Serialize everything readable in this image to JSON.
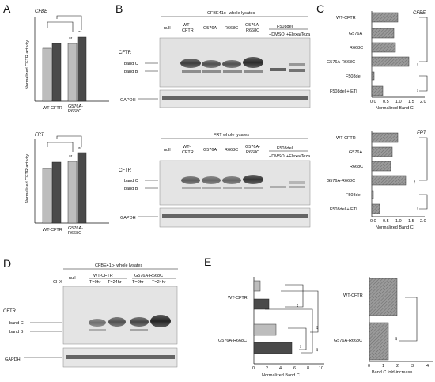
{
  "panels": {
    "A": {
      "letter": "A",
      "charts": [
        {
          "label": "CFBE",
          "ylabel": "Normalized CFTR activity",
          "xgroups": [
            "WT-CFTR",
            "G576A-R668C"
          ],
          "sig": [
            "**",
            "**"
          ]
        },
        {
          "label": "FRT",
          "ylabel": "Normalized CFTR activity",
          "xgroups": [
            "WT-CFTR",
            "G576A-R668C"
          ],
          "sig": [
            "**",
            "**"
          ]
        }
      ]
    },
    "B": {
      "letter": "B",
      "blots": [
        {
          "title": "CFBE41o- whole lysates",
          "lanes": [
            "null",
            "WT-CFTR",
            "G576A",
            "R668C",
            "G576A-R668C",
            "F508del"
          ],
          "sublanes": [
            "+DMSO",
            "+Elexa/Teza"
          ],
          "protein": "CFTR",
          "bandC": "band C",
          "bandB": "band B",
          "control": "GAPDH"
        },
        {
          "title": "FRT whole lysates",
          "lanes": [
            "null",
            "WT-CFTR",
            "G576A",
            "R668C",
            "G576A-R668C",
            "F508del"
          ],
          "sublanes": [
            "+DMSO",
            "+Elexa/Teza"
          ],
          "protein": "CFTR",
          "bandC": "band C",
          "bandB": "band B",
          "control": "GAPDH"
        }
      ]
    },
    "C": {
      "letter": "C",
      "charts": [
        {
          "label": "CFBE",
          "xlabel": "Normalized Band C",
          "ticks": [
            "0.0",
            "0.5",
            "1.0",
            "1.5",
            "2.0"
          ],
          "sig": [
            "**",
            "**"
          ]
        },
        {
          "label": "FRT",
          "xlabel": "Normalized Band C",
          "ticks": [
            "0.0",
            "0.5",
            "1.0",
            "1.5",
            "2.0"
          ],
          "sig": [
            "**",
            "**"
          ]
        }
      ]
    },
    "D": {
      "letter": "D",
      "title": "CFBE41o- whole lysates",
      "chx": "CHX",
      "lanes": [
        "null",
        "WT-CFTR",
        "G576A-R668C"
      ],
      "times": [
        "T=0hr",
        "T=24hr",
        "T=0hr",
        "T=24hr"
      ],
      "protein": "CFTR",
      "bandC": "band C",
      "bandB": "band B",
      "control": "GAPDH"
    },
    "E": {
      "letter": "E",
      "left": {
        "xlabel": "Normalized Band C",
        "ticks": [
          "0",
          "2",
          "4",
          "6",
          "8",
          "10"
        ],
        "groups": [
          "WT-CFTR",
          "G576A-R668C"
        ],
        "sig": [
          "**",
          "**",
          "**",
          "**"
        ]
      },
      "right": {
        "xlabel": "Band C fold-increase",
        "ticks": [
          "0",
          "1",
          "2",
          "3",
          "4"
        ],
        "groups": [
          "WT-CFTR",
          "G576A-R668C"
        ],
        "sig": [
          "**"
        ]
      }
    }
  },
  "chart_data": [
    {
      "type": "bar",
      "panel": "A-CFBE",
      "title": "CFBE",
      "ylabel": "Normalized CFTR activity",
      "categories": [
        "WT-CFTR",
        "G576A-R668C"
      ],
      "series": [
        {
          "color": "#bdbdbd",
          "values": [
            1.0,
            1.07
          ]
        },
        {
          "color": "#4a4a4a",
          "values": [
            1.1,
            1.22
          ]
        }
      ]
    },
    {
      "type": "bar",
      "panel": "A-FRT",
      "title": "FRT",
      "ylabel": "Normalized CFTR activity",
      "categories": [
        "WT-CFTR",
        "G576A-R668C"
      ],
      "series": [
        {
          "color": "#bdbdbd",
          "values": [
            1.0,
            1.12
          ]
        },
        {
          "color": "#4a4a4a",
          "values": [
            1.13,
            1.3
          ]
        }
      ]
    },
    {
      "type": "bar",
      "orientation": "horizontal",
      "panel": "C-CFBE",
      "title": "CFBE",
      "xlabel": "Normalized Band C",
      "xlim": [
        0,
        2.0
      ],
      "categories": [
        "WT-CFTR",
        "G576A",
        "R668C",
        "G576A-R668C",
        "F508del",
        "F508del + ETI"
      ],
      "values": [
        1.0,
        0.82,
        0.88,
        1.45,
        0.05,
        0.4
      ]
    },
    {
      "type": "bar",
      "orientation": "horizontal",
      "panel": "C-FRT",
      "title": "FRT",
      "xlabel": "Normalized Band C",
      "xlim": [
        0,
        2.0
      ],
      "categories": [
        "WT-CFTR",
        "G576A",
        "R668C",
        "G576A-R668C",
        "F508del",
        "F508del + ETI"
      ],
      "values": [
        1.0,
        0.78,
        0.72,
        1.28,
        0.03,
        0.28
      ]
    },
    {
      "type": "bar",
      "orientation": "horizontal",
      "panel": "E-left",
      "xlabel": "Normalized Band C",
      "xlim": [
        0,
        10
      ],
      "categories": [
        "WT-CFTR T=0hr",
        "WT-CFTR T=24hr",
        "G576A-R668C T=0hr",
        "G576A-R668C T=24hr"
      ],
      "values": [
        1.0,
        2.4,
        3.3,
        6.2
      ]
    },
    {
      "type": "bar",
      "orientation": "horizontal",
      "panel": "E-right",
      "xlabel": "Band C fold-increase",
      "xlim": [
        0,
        4
      ],
      "categories": [
        "WT-CFTR",
        "G576A-R668C"
      ],
      "values": [
        2.4,
        1.8
      ]
    }
  ]
}
